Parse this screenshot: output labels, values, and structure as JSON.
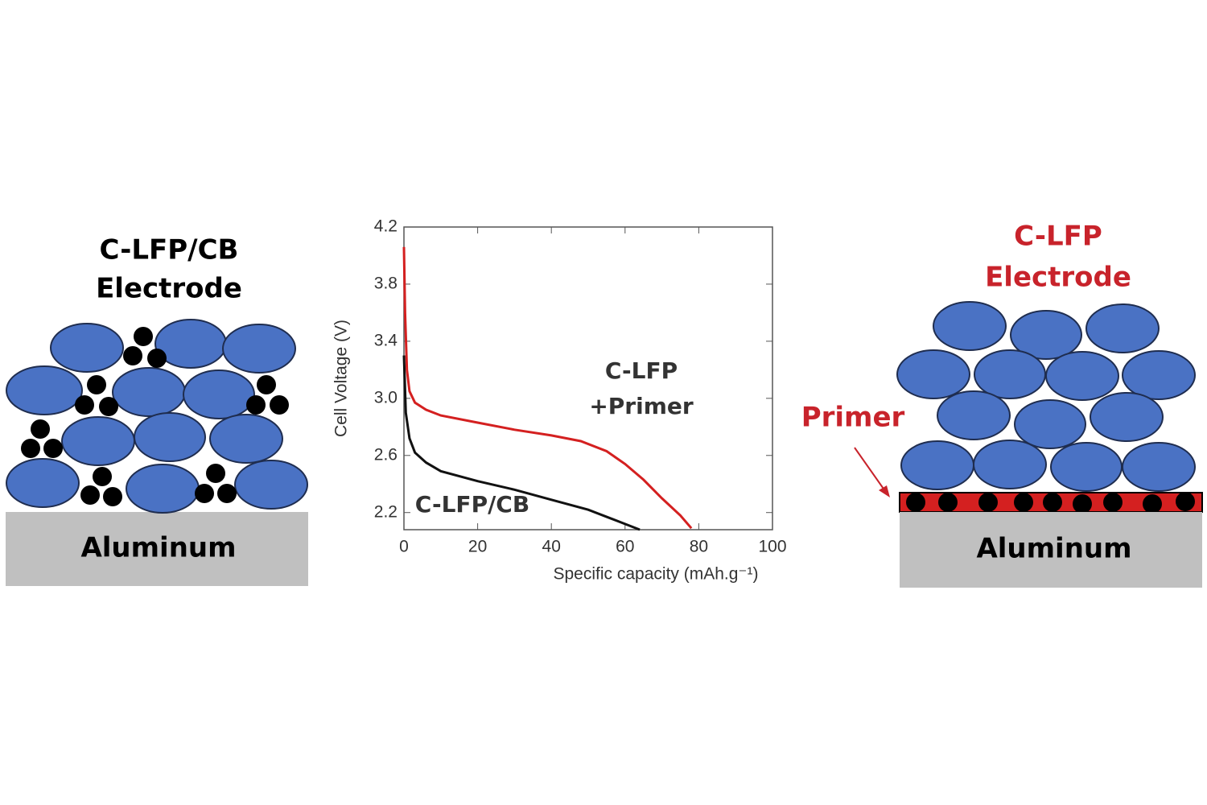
{
  "left_diagram": {
    "title": [
      "C-LFP/CB",
      "Electrode"
    ],
    "substrate": "Aluminum"
  },
  "chart_data": {
    "type": "line",
    "x_label": "Specific capacity (mAh.g⁻¹)",
    "y_label": "Cell Voltage (V)",
    "xlim": [
      0,
      100
    ],
    "ylim": [
      2.08,
      4.2
    ],
    "xticks": [
      0,
      20,
      40,
      60,
      80,
      100
    ],
    "yticks": [
      2.2,
      2.6,
      {
        "value": 3,
        "label": "3.0"
      },
      3.4,
      3.8,
      4.2
    ],
    "series": [
      {
        "label": [
          "C-LFP",
          "+Primer"
        ],
        "color": "#d42020",
        "x": [
          0,
          0.3,
          0.8,
          1.5,
          3,
          6,
          10,
          20,
          30,
          40,
          48,
          55,
          60,
          65,
          70,
          75,
          78
        ],
        "values": [
          4.06,
          3.6,
          3.2,
          3.05,
          2.97,
          2.92,
          2.88,
          2.83,
          2.78,
          2.74,
          2.7,
          2.63,
          2.54,
          2.43,
          2.3,
          2.18,
          2.09
        ]
      },
      {
        "label": [
          "C-LFP/CB"
        ],
        "color": "#111111",
        "x": [
          0,
          0.5,
          1.5,
          3,
          6,
          10,
          20,
          30,
          40,
          50,
          56,
          60,
          64
        ],
        "values": [
          3.3,
          2.9,
          2.72,
          2.62,
          2.55,
          2.49,
          2.42,
          2.36,
          2.29,
          2.22,
          2.16,
          2.12,
          2.08
        ]
      }
    ]
  },
  "right_diagram": {
    "title": [
      "C-LFP",
      "Electrode"
    ],
    "primer_label": "Primer",
    "substrate": "Aluminum"
  }
}
